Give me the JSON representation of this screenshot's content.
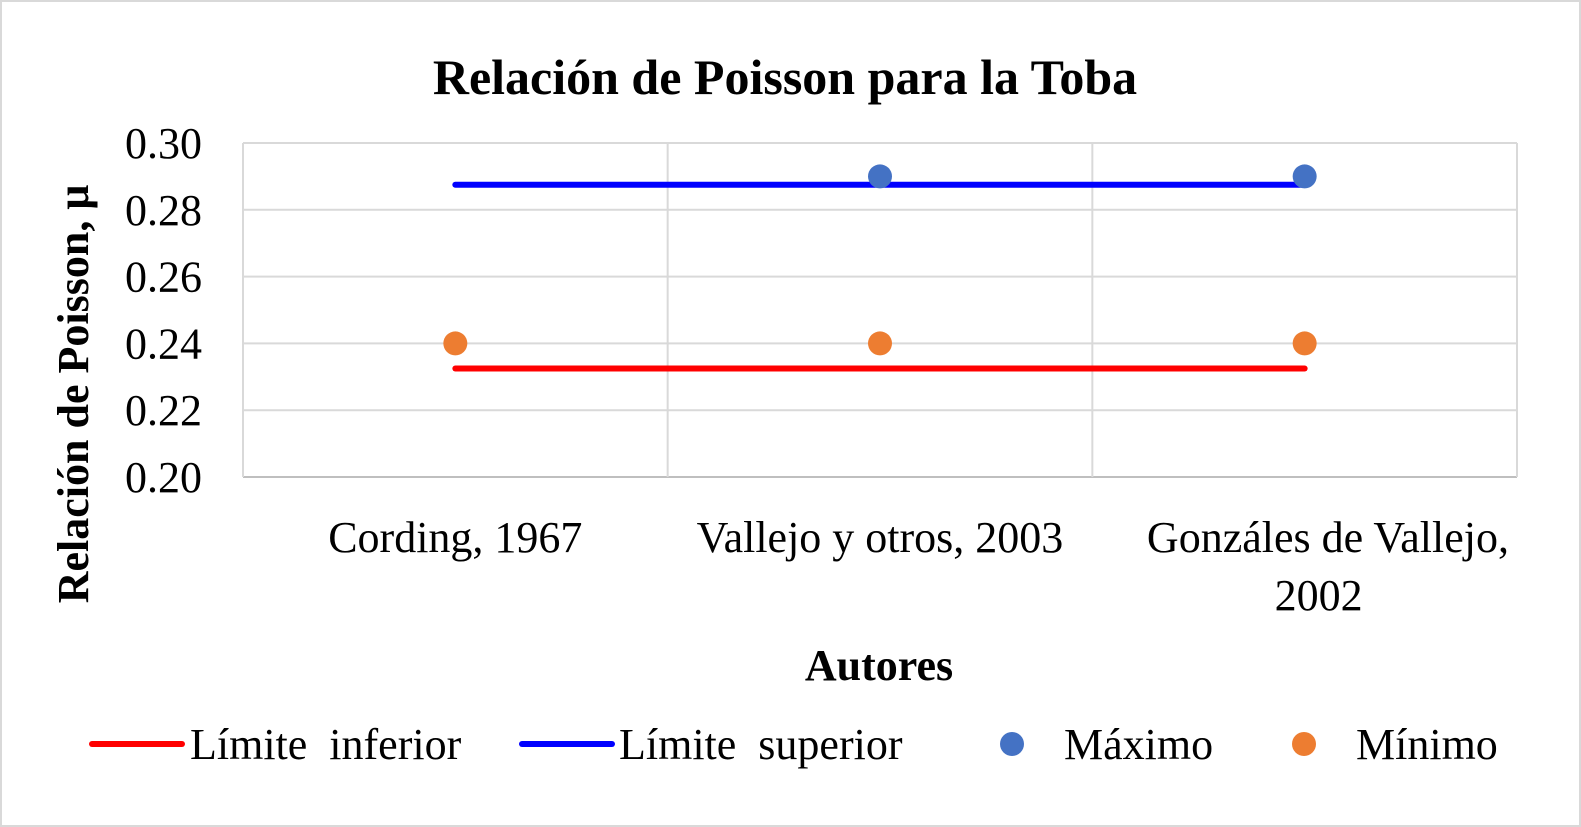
{
  "chart_data": {
    "type": "line",
    "title": "Relación de Poisson para la Toba",
    "xlabel": "Autores",
    "ylabel": "Relación de Poisson, μ",
    "categories": [
      [
        "Cording, 1967"
      ],
      [
        "Vallejo y otros, 2003"
      ],
      [
        "Gonzáles de Vallejo,",
        "2002"
      ]
    ],
    "ylim": [
      0.2,
      0.3
    ],
    "yticks": [
      "0.20",
      "0.22",
      "0.24",
      "0.26",
      "0.28",
      "0.30"
    ],
    "grid": true,
    "legend_position": "bottom",
    "series": [
      {
        "name": "Límite  inferior",
        "kind": "line",
        "color": "#ff0000",
        "values": [
          0.2325,
          0.2325,
          0.2325
        ]
      },
      {
        "name": "Límite  superior",
        "kind": "line",
        "color": "#0000ff",
        "values": [
          0.2875,
          0.2875,
          0.2875
        ]
      },
      {
        "name": "Máximo",
        "kind": "marker",
        "color": "#4472c4",
        "values": [
          null,
          0.29,
          0.29
        ]
      },
      {
        "name": "Mínimo",
        "kind": "marker",
        "color": "#ed7d31",
        "values": [
          0.24,
          0.24,
          0.24
        ]
      }
    ]
  }
}
